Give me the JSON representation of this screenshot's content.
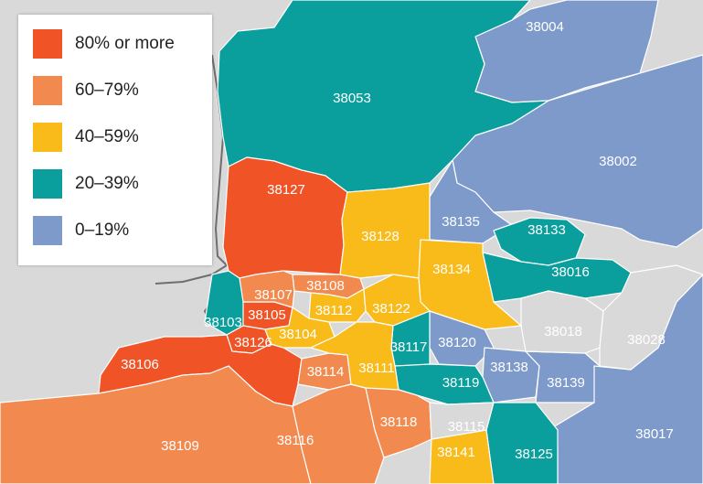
{
  "colors": {
    "bin_80_plus": "#ef5326",
    "bin_60_79": "#f28a4f",
    "bin_40_59": "#f9bb1a",
    "bin_20_39": "#0a9f9d",
    "bin_0_19": "#7d9acb",
    "no_data": "#d9d9d9"
  },
  "legend": [
    {
      "label": "80% or more",
      "color": "#ef5326"
    },
    {
      "label": "60–79%",
      "color": "#f28a4f"
    },
    {
      "label": "40–59%",
      "color": "#f9bb1a"
    },
    {
      "label": "20–39%",
      "color": "#0a9f9d"
    },
    {
      "label": "0–19%",
      "color": "#7d9acb"
    }
  ],
  "zip_codes": [
    {
      "zip": "38004",
      "bin": "0–19%"
    },
    {
      "zip": "38053",
      "bin": "20–39%"
    },
    {
      "zip": "38002",
      "bin": "0–19%"
    },
    {
      "zip": "38127",
      "bin": "80% or more"
    },
    {
      "zip": "38135",
      "bin": "0–19%"
    },
    {
      "zip": "38133",
      "bin": "20–39%"
    },
    {
      "zip": "38128",
      "bin": "40–59%"
    },
    {
      "zip": "38134",
      "bin": "40–59%"
    },
    {
      "zip": "38016",
      "bin": "20–39%"
    },
    {
      "zip": "38107",
      "bin": "60–79%"
    },
    {
      "zip": "38108",
      "bin": "60–79%"
    },
    {
      "zip": "38112",
      "bin": "40–59%"
    },
    {
      "zip": "38122",
      "bin": "40–59%"
    },
    {
      "zip": "38103",
      "bin": "20–39%"
    },
    {
      "zip": "38105",
      "bin": "80% or more"
    },
    {
      "zip": "38104",
      "bin": "40–59%"
    },
    {
      "zip": "38126",
      "bin": "80% or more"
    },
    {
      "zip": "38117",
      "bin": "20–39%"
    },
    {
      "zip": "38120",
      "bin": "0–19%"
    },
    {
      "zip": "38018",
      "bin": "none"
    },
    {
      "zip": "38028",
      "bin": "none"
    },
    {
      "zip": "38106",
      "bin": "80% or more"
    },
    {
      "zip": "38114",
      "bin": "60–79%"
    },
    {
      "zip": "38111",
      "bin": "40–59%"
    },
    {
      "zip": "38119",
      "bin": "20–39%"
    },
    {
      "zip": "38138",
      "bin": "0–19%"
    },
    {
      "zip": "38139",
      "bin": "0–19%"
    },
    {
      "zip": "38118",
      "bin": "60–79%"
    },
    {
      "zip": "38115",
      "bin": "none"
    },
    {
      "zip": "38109",
      "bin": "60–79%"
    },
    {
      "zip": "38116",
      "bin": "60–79%"
    },
    {
      "zip": "38141",
      "bin": "40–59%"
    },
    {
      "zip": "38125",
      "bin": "20–39%"
    },
    {
      "zip": "38017",
      "bin": "0–19%"
    }
  ]
}
